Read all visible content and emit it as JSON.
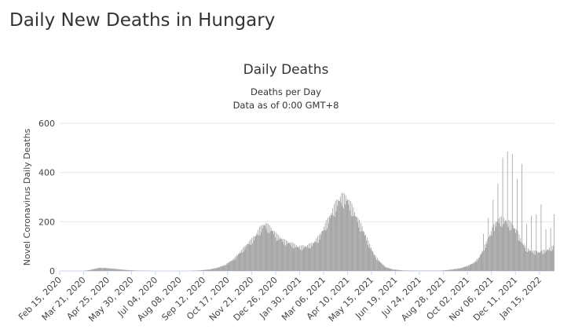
{
  "page": {
    "title": "Daily New Deaths in Hungary"
  },
  "colors": {
    "bar": "#999999",
    "grid": "#e6e6e6",
    "text": "#333333"
  },
  "chart_data": {
    "type": "bar",
    "title": "Daily Deaths",
    "subtitle_line1": "Deaths per Day",
    "subtitle_line2": "Data as of 0:00 GMT+8",
    "xlabel": "",
    "ylabel": "Novel Coronavirus Daily Deaths",
    "ylim": [
      0,
      600
    ],
    "yticks": [
      0,
      200,
      400,
      600
    ],
    "grid": true,
    "legend": "none",
    "x_start": "2020-02-15",
    "x_end": "2022-02-05",
    "x_tick_labels": [
      "Feb 15, 2020",
      "Mar 21, 2020",
      "Apr 25, 2020",
      "May 30, 2020",
      "Jul 04, 2020",
      "Aug 08, 2020",
      "Sep 12, 2020",
      "Oct 17, 2020",
      "Nov 21, 2020",
      "Dec 26, 2020",
      "Jan 30, 2021",
      "Mar 06, 2021",
      "Apr 10, 2021",
      "May 15, 2021",
      "Jun 19, 2021",
      "Jul 24, 2021",
      "Aug 28, 2021",
      "Oct 02, 2021",
      "Nov 06, 2021",
      "Dec 11, 2021",
      "Jan 15, 2022"
    ],
    "series_keypoints": [
      [
        "2020-02-15",
        0
      ],
      [
        "2020-03-20",
        0
      ],
      [
        "2020-03-28",
        3
      ],
      [
        "2020-04-05",
        8
      ],
      [
        "2020-04-12",
        12
      ],
      [
        "2020-04-20",
        12
      ],
      [
        "2020-04-28",
        10
      ],
      [
        "2020-05-10",
        7
      ],
      [
        "2020-05-25",
        3
      ],
      [
        "2020-06-10",
        1
      ],
      [
        "2020-07-15",
        0
      ],
      [
        "2020-08-20",
        0
      ],
      [
        "2020-09-05",
        2
      ],
      [
        "2020-09-20",
        6
      ],
      [
        "2020-10-01",
        12
      ],
      [
        "2020-10-12",
        22
      ],
      [
        "2020-10-25",
        45
      ],
      [
        "2020-11-05",
        75
      ],
      [
        "2020-11-15",
        105
      ],
      [
        "2020-11-25",
        130
      ],
      [
        "2020-12-02",
        160
      ],
      [
        "2020-12-10",
        180
      ],
      [
        "2020-12-18",
        165
      ],
      [
        "2020-12-28",
        135
      ],
      [
        "2021-01-08",
        115
      ],
      [
        "2021-01-18",
        105
      ],
      [
        "2021-01-28",
        92
      ],
      [
        "2021-02-08",
        95
      ],
      [
        "2021-02-18",
        105
      ],
      [
        "2021-02-28",
        135
      ],
      [
        "2021-03-08",
        175
      ],
      [
        "2021-03-16",
        215
      ],
      [
        "2021-03-24",
        260
      ],
      [
        "2021-04-01",
        285
      ],
      [
        "2021-04-08",
        280
      ],
      [
        "2021-04-15",
        250
      ],
      [
        "2021-04-22",
        210
      ],
      [
        "2021-05-01",
        165
      ],
      [
        "2021-05-10",
        110
      ],
      [
        "2021-05-18",
        65
      ],
      [
        "2021-05-26",
        38
      ],
      [
        "2021-06-04",
        15
      ],
      [
        "2021-06-15",
        6
      ],
      [
        "2021-06-30",
        2
      ],
      [
        "2021-07-20",
        1
      ],
      [
        "2021-08-15",
        1
      ],
      [
        "2021-08-28",
        2
      ],
      [
        "2021-09-10",
        6
      ],
      [
        "2021-09-20",
        10
      ],
      [
        "2021-09-30",
        18
      ],
      [
        "2021-10-10",
        30
      ],
      [
        "2021-10-18",
        50
      ],
      [
        "2021-10-25",
        85
      ],
      [
        "2021-11-01",
        125
      ],
      [
        "2021-11-08",
        165
      ],
      [
        "2021-11-15",
        195
      ],
      [
        "2021-11-22",
        200
      ],
      [
        "2021-11-29",
        190
      ],
      [
        "2021-12-06",
        175
      ],
      [
        "2021-12-13",
        150
      ],
      [
        "2021-12-20",
        110
      ],
      [
        "2021-12-27",
        85
      ],
      [
        "2022-01-05",
        75
      ],
      [
        "2022-01-15",
        72
      ],
      [
        "2022-01-25",
        80
      ],
      [
        "2022-02-05",
        95
      ]
    ],
    "weekly_spikes": [
      [
        "2021-10-25",
        150
      ],
      [
        "2021-11-01",
        215
      ],
      [
        "2021-11-08",
        290
      ],
      [
        "2021-11-15",
        355
      ],
      [
        "2021-11-22",
        460
      ],
      [
        "2021-11-29",
        485
      ],
      [
        "2021-12-06",
        475
      ],
      [
        "2021-12-13",
        375
      ],
      [
        "2021-12-20",
        435
      ],
      [
        "2021-12-27",
        190
      ],
      [
        "2022-01-03",
        225
      ],
      [
        "2022-01-10",
        230
      ],
      [
        "2022-01-17",
        270
      ],
      [
        "2022-01-24",
        170
      ],
      [
        "2022-01-31",
        175
      ],
      [
        "2022-02-05",
        230
      ]
    ]
  }
}
